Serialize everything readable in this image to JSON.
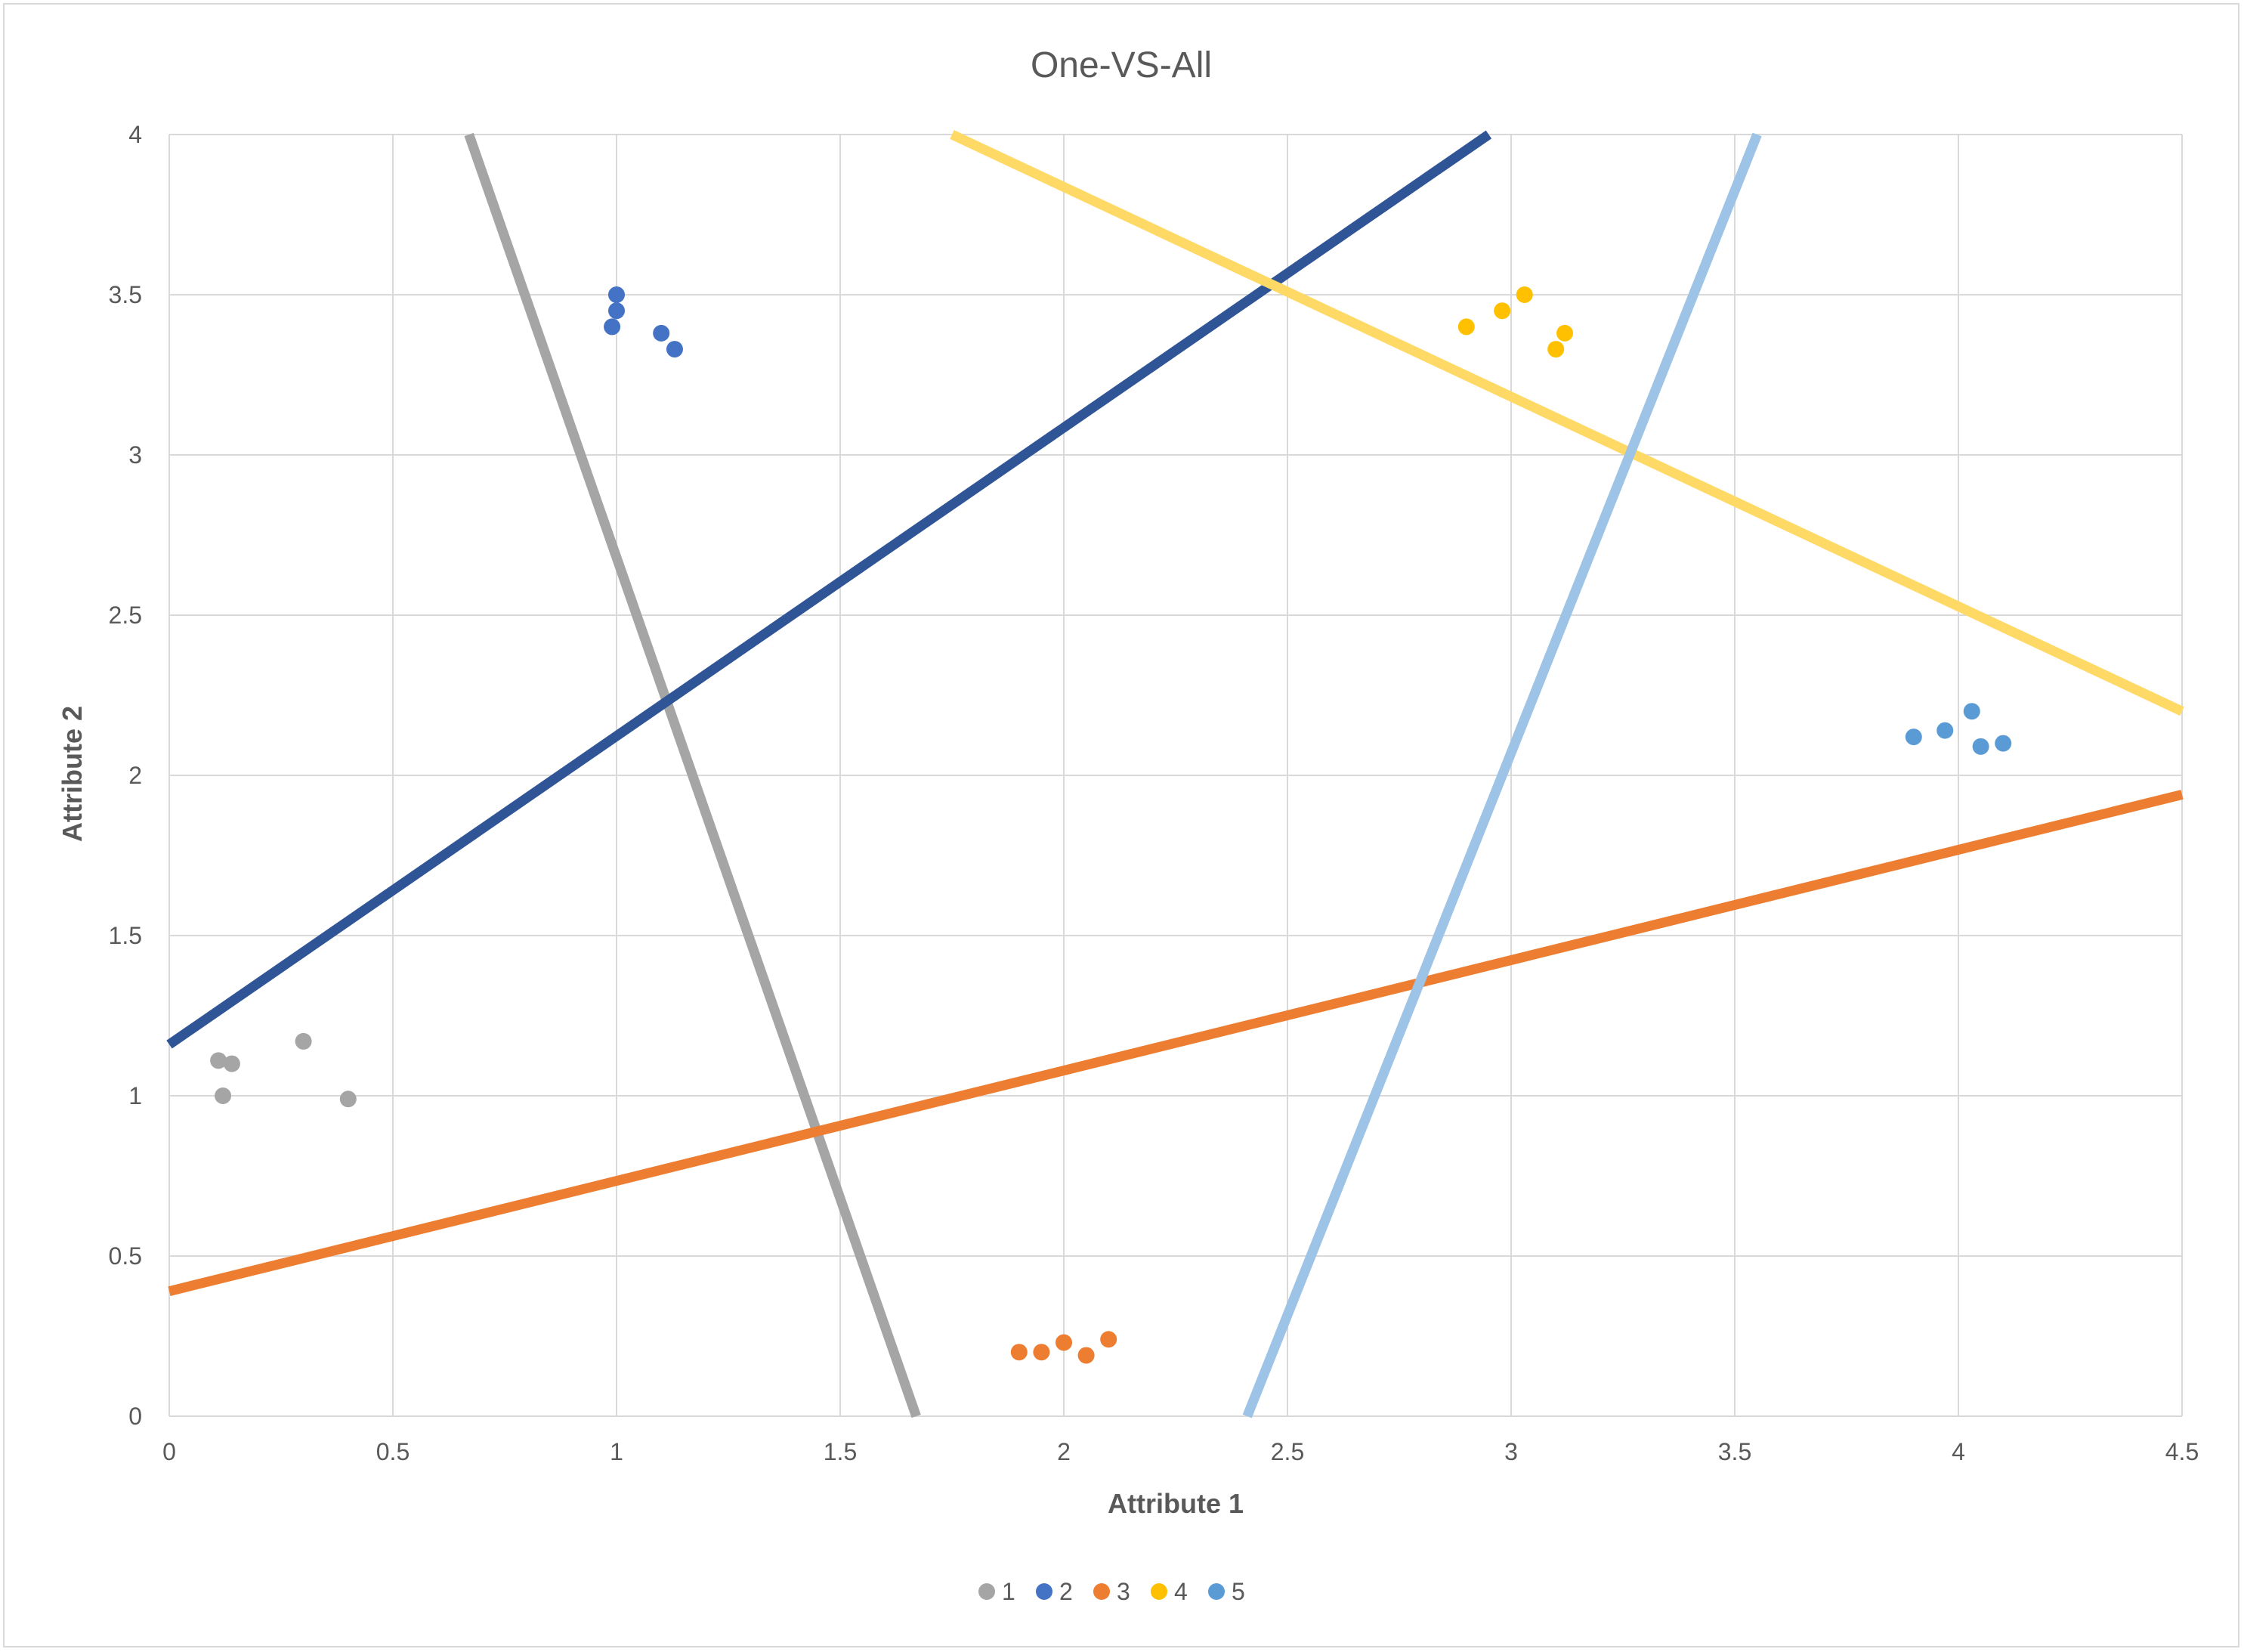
{
  "chart_data": {
    "type": "scatter",
    "title": "One-VS-All",
    "xlabel": "Attribute 1",
    "ylabel": "Attribute 2",
    "xlim": [
      0,
      4.5
    ],
    "ylim": [
      0,
      4
    ],
    "x_ticks": [
      "0",
      "0.5",
      "1",
      "1.5",
      "2",
      "2.5",
      "3",
      "3.5",
      "4",
      "4.5"
    ],
    "y_ticks": [
      "0",
      "0.5",
      "1",
      "1.5",
      "2",
      "2.5",
      "3",
      "3.5",
      "4"
    ],
    "grid": true,
    "legend_position": "bottom",
    "series": [
      {
        "name": "1",
        "color": "#A5A5A5",
        "points": [
          [
            0.11,
            1.11
          ],
          [
            0.14,
            1.1
          ],
          [
            0.12,
            1.0
          ],
          [
            0.3,
            1.17
          ],
          [
            0.4,
            0.99
          ]
        ]
      },
      {
        "name": "2",
        "color": "#4472C4",
        "points": [
          [
            1.0,
            3.5
          ],
          [
            1.0,
            3.45
          ],
          [
            0.99,
            3.4
          ],
          [
            1.1,
            3.38
          ],
          [
            1.13,
            3.33
          ]
        ]
      },
      {
        "name": "3",
        "color": "#ED7D31",
        "points": [
          [
            1.9,
            0.2
          ],
          [
            1.95,
            0.2
          ],
          [
            2.0,
            0.23
          ],
          [
            2.05,
            0.19
          ],
          [
            2.1,
            0.24
          ]
        ]
      },
      {
        "name": "4",
        "color": "#FFC000",
        "points": [
          [
            2.9,
            3.4
          ],
          [
            2.98,
            3.45
          ],
          [
            3.03,
            3.5
          ],
          [
            3.1,
            3.33
          ],
          [
            3.12,
            3.38
          ]
        ]
      },
      {
        "name": "5",
        "color": "#5B9BD5",
        "points": [
          [
            3.9,
            2.12
          ],
          [
            3.97,
            2.14
          ],
          [
            4.03,
            2.2
          ],
          [
            4.05,
            2.09
          ],
          [
            4.1,
            2.1
          ]
        ]
      }
    ],
    "lines": [
      {
        "color": "#A5A5A5",
        "from": [
          0.67,
          4.0
        ],
        "to": [
          1.67,
          0.0
        ]
      },
      {
        "color": "#2F5597",
        "from": [
          0.0,
          1.16
        ],
        "to": [
          2.95,
          4.0
        ]
      },
      {
        "color": "#ED7D31",
        "from": [
          0.0,
          0.39
        ],
        "to": [
          4.5,
          1.94
        ]
      },
      {
        "color": "#FFD966",
        "from": [
          1.75,
          4.0
        ],
        "to": [
          4.5,
          2.2
        ]
      },
      {
        "color": "#9DC3E6",
        "from": [
          2.41,
          0.0
        ],
        "to": [
          3.55,
          4.0
        ]
      }
    ]
  }
}
